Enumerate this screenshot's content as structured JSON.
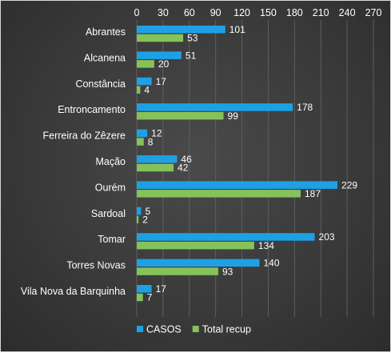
{
  "chart_data": {
    "type": "bar",
    "orientation": "horizontal",
    "categories": [
      "Abrantes",
      "Alcanena",
      "Constância",
      "Entroncamento",
      "Ferreira do Zêzere",
      "Mação",
      "Ourém",
      "Sardoal",
      "Tomar",
      "Torres Novas",
      "Vila Nova da Barquinha"
    ],
    "series": [
      {
        "name": "CASOS",
        "color": "#1ea1e4",
        "values": [
          101,
          51,
          17,
          178,
          12,
          46,
          229,
          5,
          203,
          140,
          17
        ]
      },
      {
        "name": "Total recup",
        "color": "#86c25a",
        "values": [
          53,
          20,
          4,
          99,
          8,
          42,
          187,
          2,
          134,
          93,
          7
        ]
      }
    ],
    "xlim": [
      0,
      270
    ],
    "x_ticks": [
      0,
      30,
      60,
      90,
      120,
      150,
      180,
      210,
      240,
      270
    ],
    "x_axis_position": "top",
    "grid": true,
    "legend_position": "bottom-left",
    "data_labels": true,
    "background": "#3a3a3a"
  }
}
